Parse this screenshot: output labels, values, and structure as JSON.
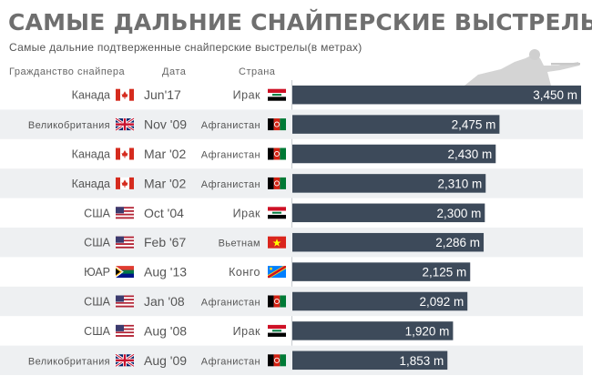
{
  "title": "САМЫЕ ДАЛЬНИЕ СНАЙПЕРСКИЕ ВЫСТРЕЛЫ",
  "subtitle": "Самые дальние подтверженные снайперские выстрелы(в метрах)",
  "headers": {
    "citizenship": "Гражданство снайпера",
    "date": "Дата",
    "country": "Страна"
  },
  "colors": {
    "bar": "#3d4a5a",
    "row_alt": "#eef0f2",
    "value_text": "#ffffff"
  },
  "chart_data": {
    "type": "bar",
    "orientation": "horizontal",
    "title": "САМЫЕ ДАЛЬНИЕ СНАЙПЕРСКИЕ ВЫСТРЕЛЫ",
    "subtitle": "Самые дальние подтверженные снайперские выстрелы(в метрах)",
    "xlim": [
      0,
      3450
    ],
    "grid": false,
    "rows": [
      {
        "citizenship": "Канада",
        "flag": "canada-flag-icon",
        "date": "Jun'17",
        "country": "Ирак",
        "country_flag": "iraq-flag-icon",
        "value": 3450,
        "label": "3,450 m"
      },
      {
        "citizenship": "Великобритания",
        "flag": "uk-flag-icon",
        "date": "Nov '09",
        "country": "Афганистан",
        "country_flag": "afghanistan-flag-icon",
        "value": 2475,
        "label": "2,475 m"
      },
      {
        "citizenship": "Канада",
        "flag": "canada-flag-icon",
        "date": "Mar '02",
        "country": "Афганистан",
        "country_flag": "afghanistan-flag-icon",
        "value": 2430,
        "label": "2,430 m"
      },
      {
        "citizenship": "Канада",
        "flag": "canada-flag-icon",
        "date": "Mar '02",
        "country": "Афганистан",
        "country_flag": "afghanistan-flag-icon",
        "value": 2310,
        "label": "2,310 m"
      },
      {
        "citizenship": "США",
        "flag": "usa-flag-icon",
        "date": "Oct '04",
        "country": "Ирак",
        "country_flag": "iraq-flag-icon",
        "value": 2300,
        "label": "2,300 m"
      },
      {
        "citizenship": "США",
        "flag": "usa-flag-icon",
        "date": "Feb '67",
        "country": "Вьетнам",
        "country_flag": "vietnam-flag-icon",
        "value": 2286,
        "label": "2,286 m"
      },
      {
        "citizenship": "ЮАР",
        "flag": "south-africa-flag-icon",
        "date": "Aug '13",
        "country": "Конго",
        "country_flag": "dr-congo-flag-icon",
        "value": 2125,
        "label": "2,125 m"
      },
      {
        "citizenship": "США",
        "flag": "usa-flag-icon",
        "date": "Jan '08",
        "country": "Афганистан",
        "country_flag": "afghanistan-flag-icon",
        "value": 2092,
        "label": "2,092 m"
      },
      {
        "citizenship": "США",
        "flag": "usa-flag-icon",
        "date": "Aug '08",
        "country": "Ирак",
        "country_flag": "iraq-flag-icon",
        "value": 1920,
        "label": "1,920 m"
      },
      {
        "citizenship": "Великобритания",
        "flag": "uk-flag-icon",
        "date": "Aug '09",
        "country": "Афганистан",
        "country_flag": "afghanistan-flag-icon",
        "value": 1853,
        "label": "1,853 m"
      }
    ]
  }
}
